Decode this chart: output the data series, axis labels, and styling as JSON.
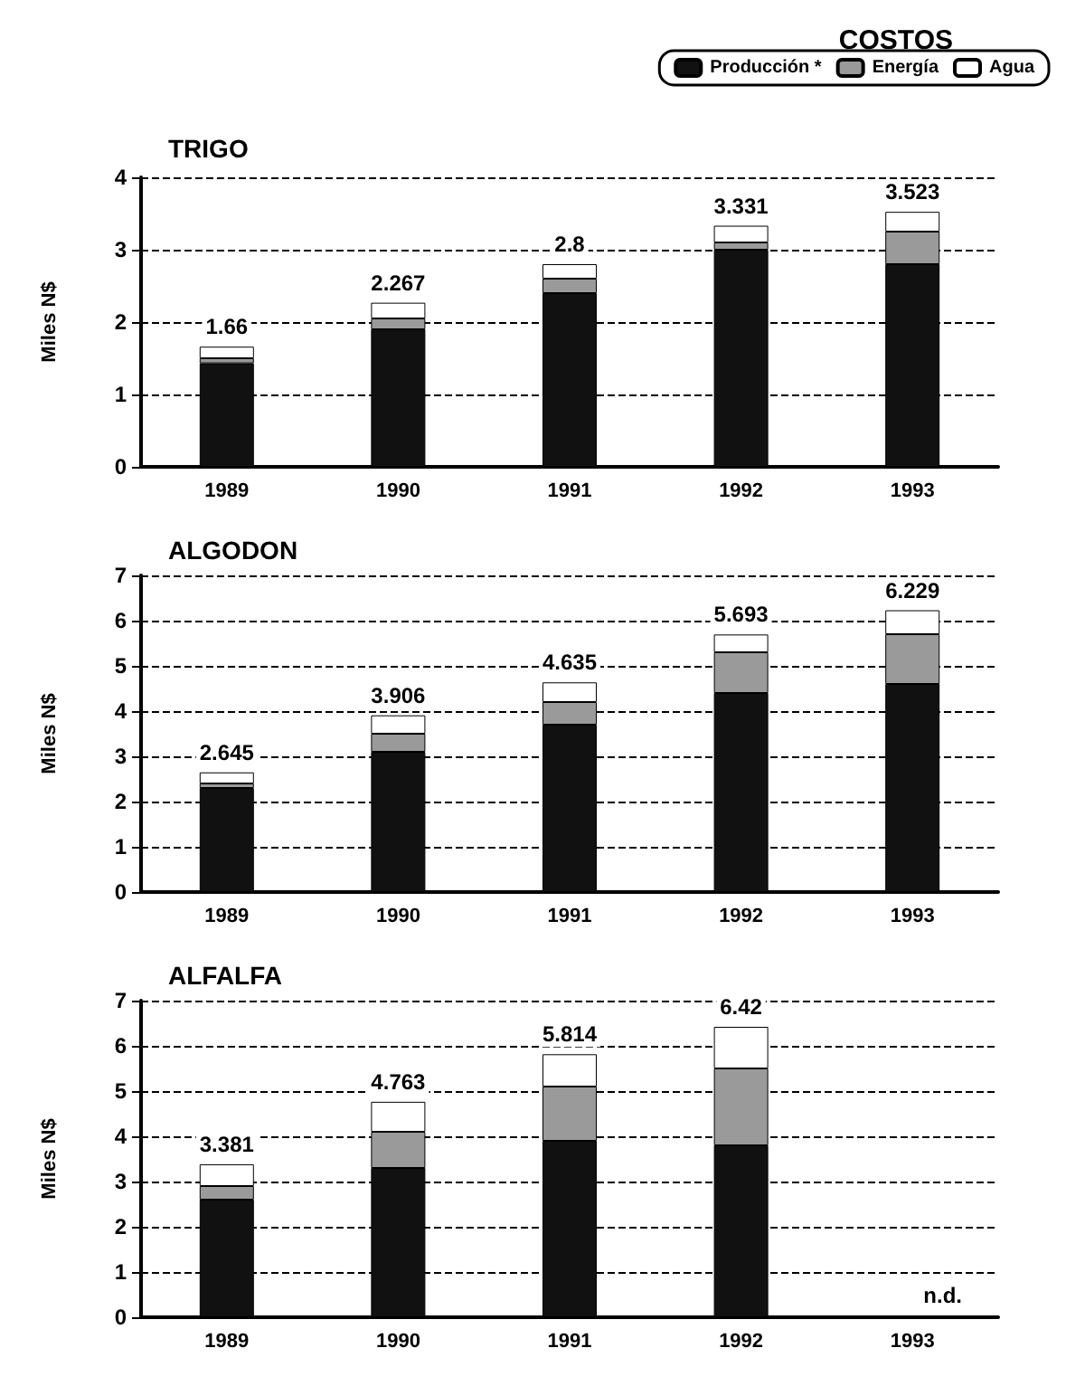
{
  "chart_data": [
    {
      "type": "bar",
      "title": "TRIGO",
      "ylabel": "Miles N$",
      "legend_title": "COSTOS",
      "legend": "top right",
      "stacked": true,
      "grid": "y",
      "categories": [
        "1989",
        "1990",
        "1991",
        "1992",
        "1993"
      ],
      "ylim": [
        0,
        4
      ],
      "yticks": [
        0,
        1,
        2,
        3,
        4
      ],
      "series": [
        {
          "name": "Producción *",
          "color": "#111111",
          "values": [
            1.43,
            1.9,
            2.4,
            3.0,
            2.8
          ]
        },
        {
          "name": "Energía",
          "color": "#9a9a9a",
          "values": [
            0.07,
            0.15,
            0.2,
            0.1,
            0.45
          ]
        },
        {
          "name": "Agua",
          "color": "#ffffff",
          "values": [
            0.16,
            0.217,
            0.2,
            0.231,
            0.273
          ]
        }
      ],
      "totals": [
        "1.66",
        "2.267",
        "2.8",
        "3.331",
        "3.523"
      ]
    },
    {
      "type": "bar",
      "title": "ALGODON",
      "ylabel": "Miles N$",
      "legend": false,
      "stacked": true,
      "grid": "y",
      "categories": [
        "1989",
        "1990",
        "1991",
        "1992",
        "1993"
      ],
      "ylim": [
        0,
        7
      ],
      "yticks": [
        0,
        1,
        2,
        3,
        4,
        5,
        6,
        7
      ],
      "series": [
        {
          "color": "#111111",
          "values": [
            2.3,
            3.1,
            3.7,
            4.4,
            4.6
          ]
        },
        {
          "color": "#9a9a9a",
          "values": [
            0.1,
            0.4,
            0.5,
            0.9,
            1.1
          ]
        },
        {
          "color": "#ffffff",
          "values": [
            0.245,
            0.406,
            0.435,
            0.393,
            0.529
          ]
        }
      ],
      "totals": [
        "2.645",
        "3.906",
        "4.635",
        "5.693",
        "6.229"
      ]
    },
    {
      "type": "bar",
      "title": "ALFALFA",
      "ylabel": "Miles N$",
      "legend": false,
      "stacked": true,
      "grid": "y",
      "categories": [
        "1989",
        "1990",
        "1991",
        "1992",
        "1993"
      ],
      "ylim": [
        0,
        7
      ],
      "yticks": [
        0,
        1,
        2,
        3,
        4,
        5,
        6,
        7
      ],
      "series": [
        {
          "color": "#111111",
          "values": [
            2.6,
            3.3,
            3.9,
            3.8,
            null
          ]
        },
        {
          "color": "#9a9a9a",
          "values": [
            0.3,
            0.8,
            1.2,
            1.7,
            null
          ]
        },
        {
          "color": "#ffffff",
          "values": [
            0.481,
            0.663,
            0.714,
            0.92,
            null
          ]
        }
      ],
      "totals": [
        "3.381",
        "4.763",
        "5.814",
        "6.42",
        null
      ],
      "annotations": [
        "n.d."
      ]
    }
  ]
}
